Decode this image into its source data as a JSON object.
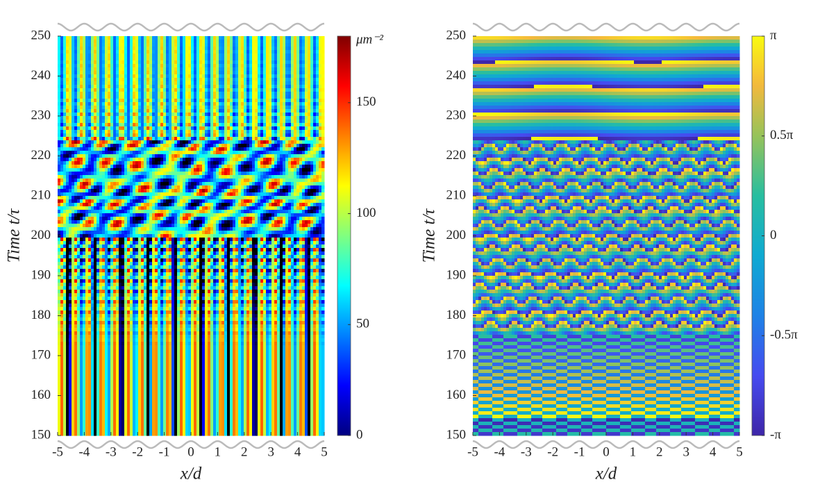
{
  "chart_data": [
    {
      "type": "heatmap",
      "field": "density",
      "xlabel": "x/d",
      "ylabel": "Time t/τ",
      "xlim": [
        -5,
        5
      ],
      "ylim": [
        150,
        250
      ],
      "xticks": [
        -5,
        -4,
        -3,
        -2,
        -1,
        0,
        1,
        2,
        3,
        4,
        5
      ],
      "yticks": [
        150,
        160,
        170,
        180,
        190,
        200,
        210,
        220,
        230,
        240,
        250
      ],
      "colormap": "jet",
      "colorbar": {
        "label": "μm⁻²",
        "clim": [
          0,
          180
        ],
        "ticks": [
          0,
          50,
          100,
          150
        ]
      }
    },
    {
      "type": "heatmap",
      "field": "phase",
      "xlabel": "x/d",
      "ylabel": "Time t/τ",
      "xlim": [
        -5,
        5
      ],
      "ylim": [
        150,
        250
      ],
      "xticks": [
        -5,
        -4,
        -3,
        -2,
        -1,
        0,
        1,
        2,
        3,
        4,
        5
      ],
      "yticks": [
        150,
        160,
        170,
        180,
        190,
        200,
        210,
        220,
        230,
        240,
        250
      ],
      "colormap": "parula",
      "colorbar": {
        "clim": [
          -3.1416,
          3.1416
        ],
        "ticks": [
          {
            "value": -3.1416,
            "label": "-π"
          },
          {
            "value": -1.5708,
            "label": "-0.5π"
          },
          0,
          {
            "value": 1.5708,
            "label": "0.5π"
          },
          {
            "value": 3.1416,
            "label": "π"
          }
        ]
      }
    }
  ]
}
